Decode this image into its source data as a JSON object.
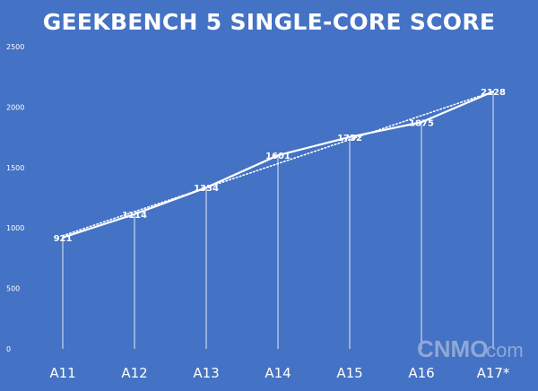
{
  "chart_data": {
    "type": "line",
    "title": "GEEKBENCH 5 SINGLE-CORE SCORE",
    "categories": [
      "A11",
      "A12",
      "A13",
      "A14",
      "A15",
      "A16",
      "A17*"
    ],
    "series": [
      {
        "values": [
          921,
          1114,
          1334,
          1601,
          1752,
          1875,
          2128
        ]
      }
    ],
    "trendline": "linear, dotted",
    "drop_lines": true,
    "ylim": [
      0,
      2500
    ],
    "yticks": [
      0,
      500,
      1000,
      1500,
      2000,
      2500
    ],
    "grid": false,
    "legend": "none",
    "colors": {
      "background": "#4472c4",
      "line": "#ffffff",
      "text": "#ffffff"
    }
  },
  "watermark": {
    "brand": "CNMO",
    "domain": ".com"
  }
}
